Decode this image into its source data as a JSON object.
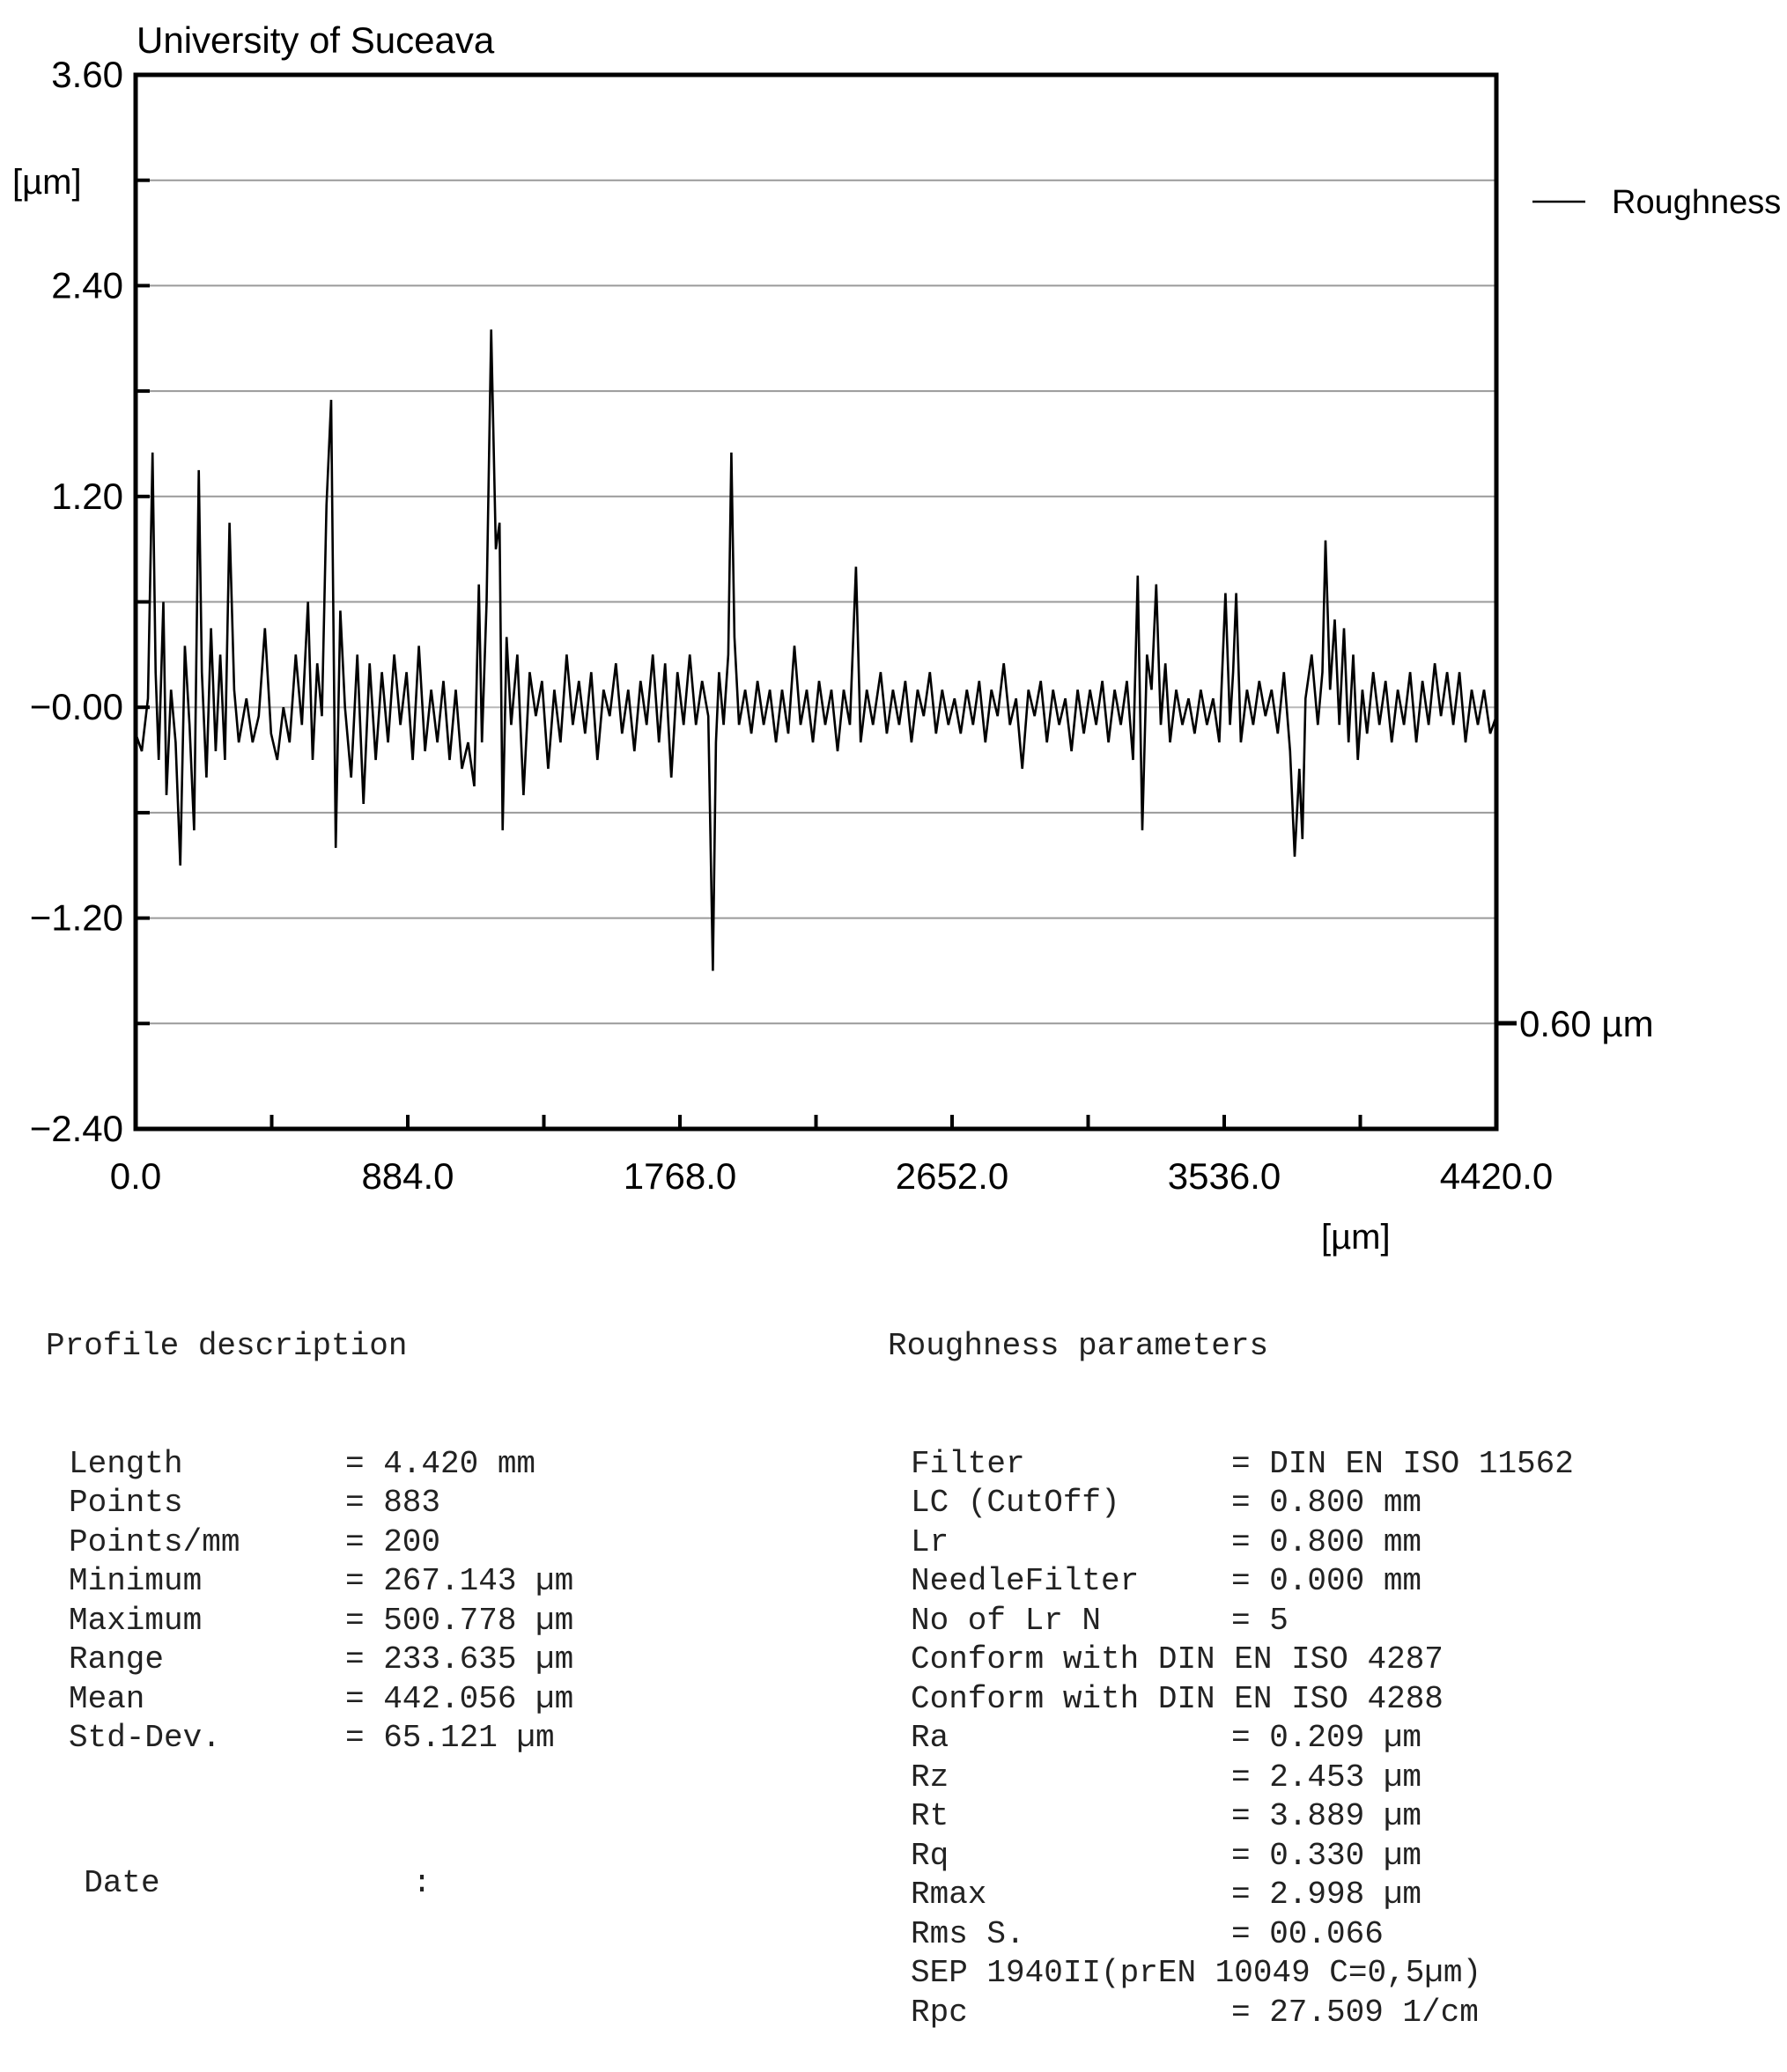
{
  "chart_data": {
    "type": "line",
    "title": "University of Suceava",
    "ylabel": "[µm]",
    "xlabel": "[µm]",
    "xlim": [
      0,
      4420
    ],
    "ylim": [
      -2.4,
      3.6
    ],
    "x_ticks": [
      "0.0",
      "884.0",
      "1768.0",
      "2652.0",
      "3536.0",
      "4420.0"
    ],
    "y_ticks": [
      "3.60",
      "2.40",
      "1.20",
      "-0.00",
      "-1.20",
      "-2.40"
    ],
    "y_tick_values": [
      3.6,
      2.4,
      1.2,
      0,
      -1.2,
      -2.4
    ],
    "scale_note": "0.60 µm",
    "grid": true,
    "legend_position": "right",
    "series": [
      {
        "name": "Roughness",
        "color": "#000000",
        "points": [
          [
            0,
            -0.15
          ],
          [
            20,
            -0.25
          ],
          [
            40,
            0.05
          ],
          [
            55,
            1.45
          ],
          [
            65,
            0.2
          ],
          [
            75,
            -0.3
          ],
          [
            90,
            0.6
          ],
          [
            100,
            -0.5
          ],
          [
            115,
            0.1
          ],
          [
            130,
            -0.2
          ],
          [
            145,
            -0.9
          ],
          [
            160,
            0.35
          ],
          [
            175,
            -0.1
          ],
          [
            190,
            -0.7
          ],
          [
            205,
            1.35
          ],
          [
            215,
            0.2
          ],
          [
            230,
            -0.4
          ],
          [
            245,
            0.45
          ],
          [
            260,
            -0.25
          ],
          [
            275,
            0.3
          ],
          [
            290,
            -0.3
          ],
          [
            305,
            1.05
          ],
          [
            320,
            0.1
          ],
          [
            335,
            -0.2
          ],
          [
            360,
            0.05
          ],
          [
            380,
            -0.2
          ],
          [
            400,
            -0.05
          ],
          [
            420,
            0.45
          ],
          [
            440,
            -0.15
          ],
          [
            460,
            -0.3
          ],
          [
            480,
            0.0
          ],
          [
            500,
            -0.2
          ],
          [
            520,
            0.3
          ],
          [
            540,
            -0.1
          ],
          [
            560,
            0.6
          ],
          [
            575,
            -0.3
          ],
          [
            590,
            0.25
          ],
          [
            605,
            -0.05
          ],
          [
            620,
            1.15
          ],
          [
            635,
            1.75
          ],
          [
            650,
            -0.8
          ],
          [
            665,
            0.55
          ],
          [
            680,
            0.0
          ],
          [
            700,
            -0.4
          ],
          [
            720,
            0.3
          ],
          [
            740,
            -0.55
          ],
          [
            760,
            0.25
          ],
          [
            780,
            -0.3
          ],
          [
            800,
            0.2
          ],
          [
            820,
            -0.2
          ],
          [
            840,
            0.3
          ],
          [
            860,
            -0.1
          ],
          [
            880,
            0.2
          ],
          [
            900,
            -0.3
          ],
          [
            920,
            0.35
          ],
          [
            940,
            -0.25
          ],
          [
            960,
            0.1
          ],
          [
            980,
            -0.2
          ],
          [
            1000,
            0.15
          ],
          [
            1020,
            -0.3
          ],
          [
            1040,
            0.1
          ],
          [
            1060,
            -0.35
          ],
          [
            1080,
            -0.2
          ],
          [
            1100,
            -0.45
          ],
          [
            1115,
            0.7
          ],
          [
            1125,
            -0.2
          ],
          [
            1140,
            0.6
          ],
          [
            1155,
            2.15
          ],
          [
            1170,
            0.9
          ],
          [
            1182,
            1.05
          ],
          [
            1192,
            -0.7
          ],
          [
            1205,
            0.4
          ],
          [
            1220,
            -0.1
          ],
          [
            1240,
            0.3
          ],
          [
            1260,
            -0.5
          ],
          [
            1280,
            0.2
          ],
          [
            1300,
            -0.05
          ],
          [
            1320,
            0.15
          ],
          [
            1340,
            -0.35
          ],
          [
            1360,
            0.1
          ],
          [
            1380,
            -0.2
          ],
          [
            1400,
            0.3
          ],
          [
            1420,
            -0.1
          ],
          [
            1440,
            0.15
          ],
          [
            1460,
            -0.15
          ],
          [
            1480,
            0.2
          ],
          [
            1500,
            -0.3
          ],
          [
            1520,
            0.1
          ],
          [
            1540,
            -0.05
          ],
          [
            1560,
            0.25
          ],
          [
            1580,
            -0.15
          ],
          [
            1600,
            0.1
          ],
          [
            1620,
            -0.25
          ],
          [
            1640,
            0.15
          ],
          [
            1660,
            -0.1
          ],
          [
            1680,
            0.3
          ],
          [
            1700,
            -0.2
          ],
          [
            1720,
            0.25
          ],
          [
            1740,
            -0.4
          ],
          [
            1760,
            0.2
          ],
          [
            1780,
            -0.1
          ],
          [
            1800,
            0.3
          ],
          [
            1820,
            -0.1
          ],
          [
            1840,
            0.15
          ],
          [
            1860,
            -0.05
          ],
          [
            1875,
            -1.5
          ],
          [
            1885,
            -0.2
          ],
          [
            1895,
            0.2
          ],
          [
            1910,
            -0.1
          ],
          [
            1925,
            0.3
          ],
          [
            1935,
            1.45
          ],
          [
            1945,
            0.4
          ],
          [
            1960,
            -0.1
          ],
          [
            1980,
            0.1
          ],
          [
            2000,
            -0.15
          ],
          [
            2020,
            0.15
          ],
          [
            2040,
            -0.1
          ],
          [
            2060,
            0.1
          ],
          [
            2080,
            -0.2
          ],
          [
            2100,
            0.1
          ],
          [
            2120,
            -0.15
          ],
          [
            2140,
            0.35
          ],
          [
            2160,
            -0.1
          ],
          [
            2180,
            0.1
          ],
          [
            2200,
            -0.2
          ],
          [
            2220,
            0.15
          ],
          [
            2240,
            -0.1
          ],
          [
            2260,
            0.1
          ],
          [
            2280,
            -0.25
          ],
          [
            2300,
            0.1
          ],
          [
            2320,
            -0.1
          ],
          [
            2340,
            0.8
          ],
          [
            2355,
            -0.2
          ],
          [
            2375,
            0.1
          ],
          [
            2395,
            -0.1
          ],
          [
            2420,
            0.2
          ],
          [
            2440,
            -0.15
          ],
          [
            2460,
            0.1
          ],
          [
            2480,
            -0.1
          ],
          [
            2500,
            0.15
          ],
          [
            2520,
            -0.2
          ],
          [
            2540,
            0.1
          ],
          [
            2560,
            -0.05
          ],
          [
            2580,
            0.2
          ],
          [
            2600,
            -0.15
          ],
          [
            2620,
            0.1
          ],
          [
            2640,
            -0.1
          ],
          [
            2660,
            0.05
          ],
          [
            2680,
            -0.15
          ],
          [
            2700,
            0.1
          ],
          [
            2720,
            -0.1
          ],
          [
            2740,
            0.15
          ],
          [
            2760,
            -0.2
          ],
          [
            2780,
            0.1
          ],
          [
            2800,
            -0.05
          ],
          [
            2820,
            0.25
          ],
          [
            2840,
            -0.1
          ],
          [
            2860,
            0.05
          ],
          [
            2880,
            -0.35
          ],
          [
            2900,
            0.1
          ],
          [
            2920,
            -0.05
          ],
          [
            2940,
            0.15
          ],
          [
            2960,
            -0.2
          ],
          [
            2980,
            0.1
          ],
          [
            3000,
            -0.1
          ],
          [
            3020,
            0.05
          ],
          [
            3040,
            -0.25
          ],
          [
            3060,
            0.1
          ],
          [
            3080,
            -0.15
          ],
          [
            3100,
            0.1
          ],
          [
            3120,
            -0.1
          ],
          [
            3140,
            0.15
          ],
          [
            3160,
            -0.2
          ],
          [
            3180,
            0.1
          ],
          [
            3200,
            -0.1
          ],
          [
            3220,
            0.15
          ],
          [
            3240,
            -0.3
          ],
          [
            3255,
            0.75
          ],
          [
            3270,
            -0.7
          ],
          [
            3285,
            0.3
          ],
          [
            3300,
            0.1
          ],
          [
            3315,
            0.7
          ],
          [
            3330,
            -0.1
          ],
          [
            3345,
            0.25
          ],
          [
            3360,
            -0.2
          ],
          [
            3380,
            0.1
          ],
          [
            3400,
            -0.1
          ],
          [
            3420,
            0.05
          ],
          [
            3440,
            -0.15
          ],
          [
            3460,
            0.1
          ],
          [
            3480,
            -0.1
          ],
          [
            3500,
            0.05
          ],
          [
            3520,
            -0.2
          ],
          [
            3540,
            0.65
          ],
          [
            3555,
            -0.1
          ],
          [
            3565,
            0.2
          ],
          [
            3575,
            0.65
          ],
          [
            3590,
            -0.2
          ],
          [
            3610,
            0.1
          ],
          [
            3630,
            -0.1
          ],
          [
            3650,
            0.15
          ],
          [
            3670,
            -0.05
          ],
          [
            3690,
            0.1
          ],
          [
            3710,
            -0.15
          ],
          [
            3730,
            0.2
          ],
          [
            3750,
            -0.25
          ],
          [
            3765,
            -0.85
          ],
          [
            3780,
            -0.35
          ],
          [
            3790,
            -0.75
          ],
          [
            3800,
            0.05
          ],
          [
            3820,
            0.3
          ],
          [
            3840,
            -0.1
          ],
          [
            3855,
            0.2
          ],
          [
            3865,
            0.95
          ],
          [
            3880,
            0.1
          ],
          [
            3895,
            0.5
          ],
          [
            3910,
            -0.1
          ],
          [
            3925,
            0.45
          ],
          [
            3940,
            -0.2
          ],
          [
            3955,
            0.3
          ],
          [
            3970,
            -0.3
          ],
          [
            3985,
            0.1
          ],
          [
            4000,
            -0.15
          ],
          [
            4020,
            0.2
          ],
          [
            4040,
            -0.1
          ],
          [
            4060,
            0.15
          ],
          [
            4080,
            -0.2
          ],
          [
            4100,
            0.1
          ],
          [
            4120,
            -0.1
          ],
          [
            4140,
            0.2
          ],
          [
            4160,
            -0.2
          ],
          [
            4180,
            0.15
          ],
          [
            4200,
            -0.1
          ],
          [
            4220,
            0.25
          ],
          [
            4240,
            -0.05
          ],
          [
            4260,
            0.2
          ],
          [
            4280,
            -0.1
          ],
          [
            4300,
            0.2
          ],
          [
            4320,
            -0.2
          ],
          [
            4340,
            0.1
          ],
          [
            4360,
            -0.1
          ],
          [
            4380,
            0.1
          ],
          [
            4400,
            -0.15
          ],
          [
            4420,
            -0.05
          ]
        ]
      }
    ]
  },
  "report": {
    "profile": {
      "heading": "Profile description",
      "rows": [
        {
          "label": "Length",
          "value": "= 4.420 mm"
        },
        {
          "label": "Points",
          "value": "= 883"
        },
        {
          "label": "Points/mm",
          "value": "= 200"
        },
        {
          "label": "Minimum",
          "value": "= 267.143 µm"
        },
        {
          "label": "Maximum",
          "value": "= 500.778 µm"
        },
        {
          "label": "Range",
          "value": "= 233.635 µm"
        },
        {
          "label": "Mean",
          "value": "= 442.056 µm"
        },
        {
          "label": "Std-Dev.",
          "value": "= 65.121 µm"
        }
      ]
    },
    "roughness": {
      "heading": "Roughness parameters",
      "rows": [
        {
          "label": "Filter",
          "value": "= DIN EN ISO 11562"
        },
        {
          "label": "LC (CutOff)",
          "value": "= 0.800 mm"
        },
        {
          "label": "Lr",
          "value": "= 0.800 mm"
        },
        {
          "label": "NeedleFilter",
          "value": "= 0.000 mm"
        },
        {
          "label": "No of Lr N",
          "value": "= 5"
        },
        {
          "full": "Conform with DIN EN ISO 4287"
        },
        {
          "full": "Conform with DIN EN ISO 4288"
        },
        {
          "label": "Ra",
          "value": "= 0.209 µm"
        },
        {
          "label": "Rz",
          "value": "= 2.453 µm"
        },
        {
          "label": "Rt",
          "value": "= 3.889 µm"
        },
        {
          "label": "Rq",
          "value": "= 0.330 µm"
        },
        {
          "label": "Rmax",
          "value": "= 2.998 µm"
        },
        {
          "label": "Rms S.",
          "value": "= 00.066"
        },
        {
          "full": "SEP 1940II(prEN 10049 C=0,5µm)"
        },
        {
          "label": "Rpc",
          "value": "= 27.509 1/cm"
        }
      ]
    },
    "date": {
      "label": "Date",
      "value": ":"
    }
  }
}
